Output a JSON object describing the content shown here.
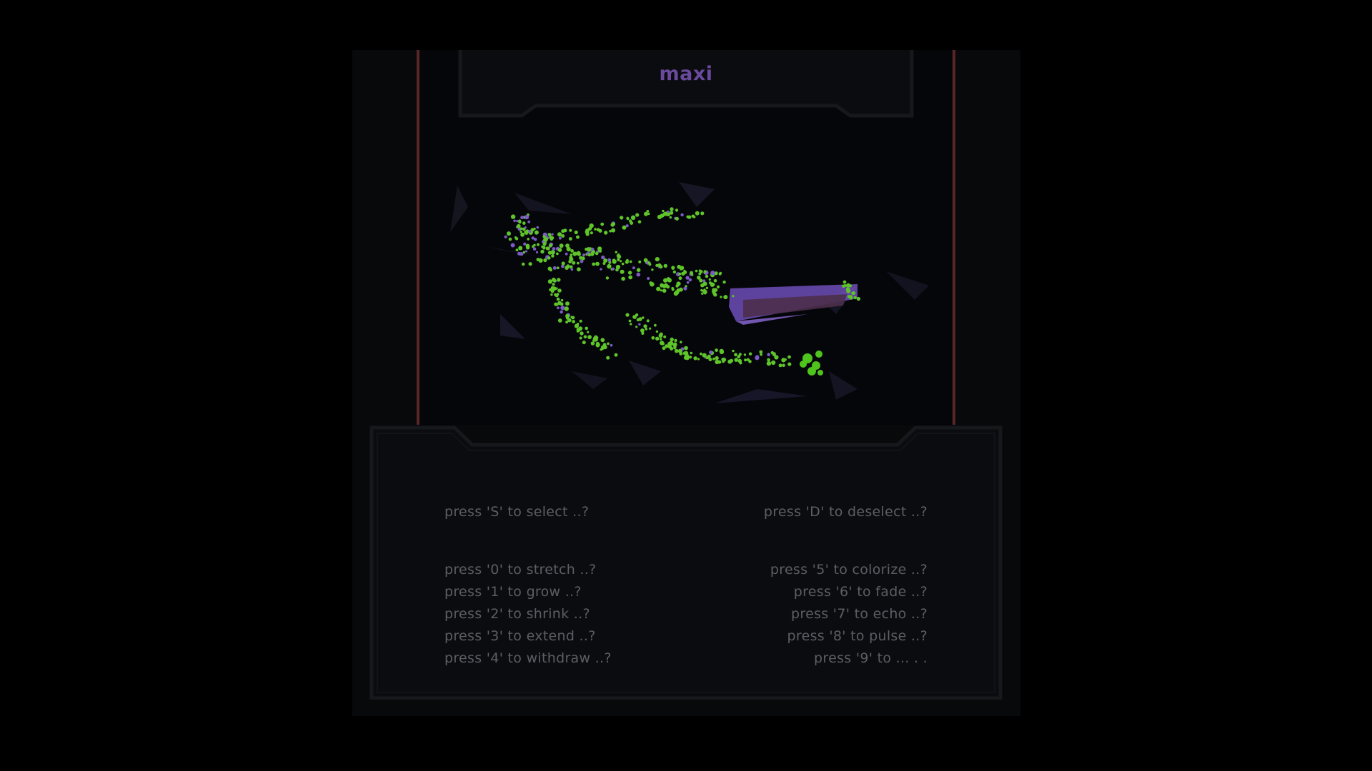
{
  "window": {
    "title": "maxi"
  },
  "colors": {
    "background": "#000000",
    "frame": "#08090b",
    "stage": "#05060a",
    "rail": "#5a2526",
    "title": "#6a4a9c",
    "hint_text": "#5c5e63",
    "particle_green": "#5fc42a",
    "particle_purple": "#7b5bc6",
    "shard": "#1a1a2a"
  },
  "controls": {
    "select": "press 'S' to select ..?",
    "deselect": "press 'D' to deselect ..?",
    "actions_left": [
      "press '0' to stretch ..?",
      "press '1' to grow ..?",
      "press '2' to shrink ..?",
      "press '3' to extend ..?",
      "press '4' to withdraw ..?"
    ],
    "actions_right": [
      "press '5' to colorize ..?",
      "press '6' to fade ..?",
      "press '7' to echo ..?",
      "press '8' to pulse ..?",
      "press '9' to ... .  ."
    ]
  }
}
